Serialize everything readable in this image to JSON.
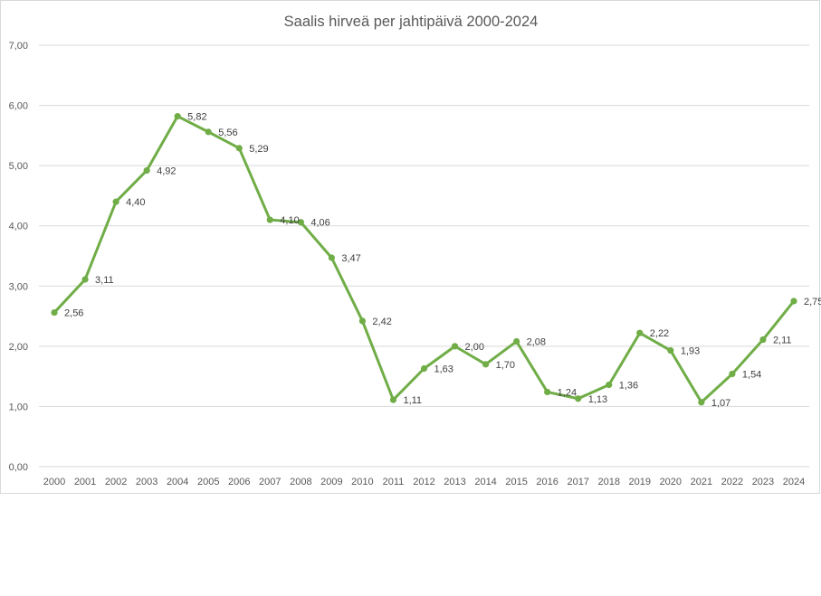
{
  "chart_data": {
    "type": "line",
    "title": "Saalis hirveä per jahtipäivä 2000-2024",
    "xlabel": "",
    "ylabel": "",
    "ylim": [
      0,
      7
    ],
    "yticks": [
      "0,00",
      "1,00",
      "2,00",
      "3,00",
      "4,00",
      "5,00",
      "6,00",
      "7,00"
    ],
    "grid": true,
    "legend": "none",
    "series_color": "#70ad47",
    "categories": [
      "2000",
      "2001",
      "2002",
      "2003",
      "2004",
      "2005",
      "2006",
      "2007",
      "2008",
      "2009",
      "2010",
      "2011",
      "2012",
      "2013",
      "2014",
      "2015",
      "2016",
      "2017",
      "2018",
      "2019",
      "2020",
      "2021",
      "2022",
      "2023",
      "2024"
    ],
    "values": [
      2.56,
      3.11,
      4.4,
      4.92,
      5.82,
      5.56,
      5.29,
      4.1,
      4.06,
      3.47,
      2.42,
      1.11,
      1.63,
      2.0,
      1.7,
      2.08,
      1.24,
      1.13,
      1.36,
      2.22,
      1.93,
      1.07,
      1.54,
      2.11,
      2.75
    ],
    "value_labels": [
      "2,56",
      "3,11",
      "4,40",
      "4,92",
      "5,82",
      "5,56",
      "5,29",
      "4,10",
      "4,06",
      "3,47",
      "2,42",
      "1,11",
      "1,63",
      "2,00",
      "1,70",
      "2,08",
      "1,24",
      "1,13",
      "1,36",
      "2,22",
      "1,93",
      "1,07",
      "1,54",
      "2,11",
      "2,75"
    ]
  }
}
